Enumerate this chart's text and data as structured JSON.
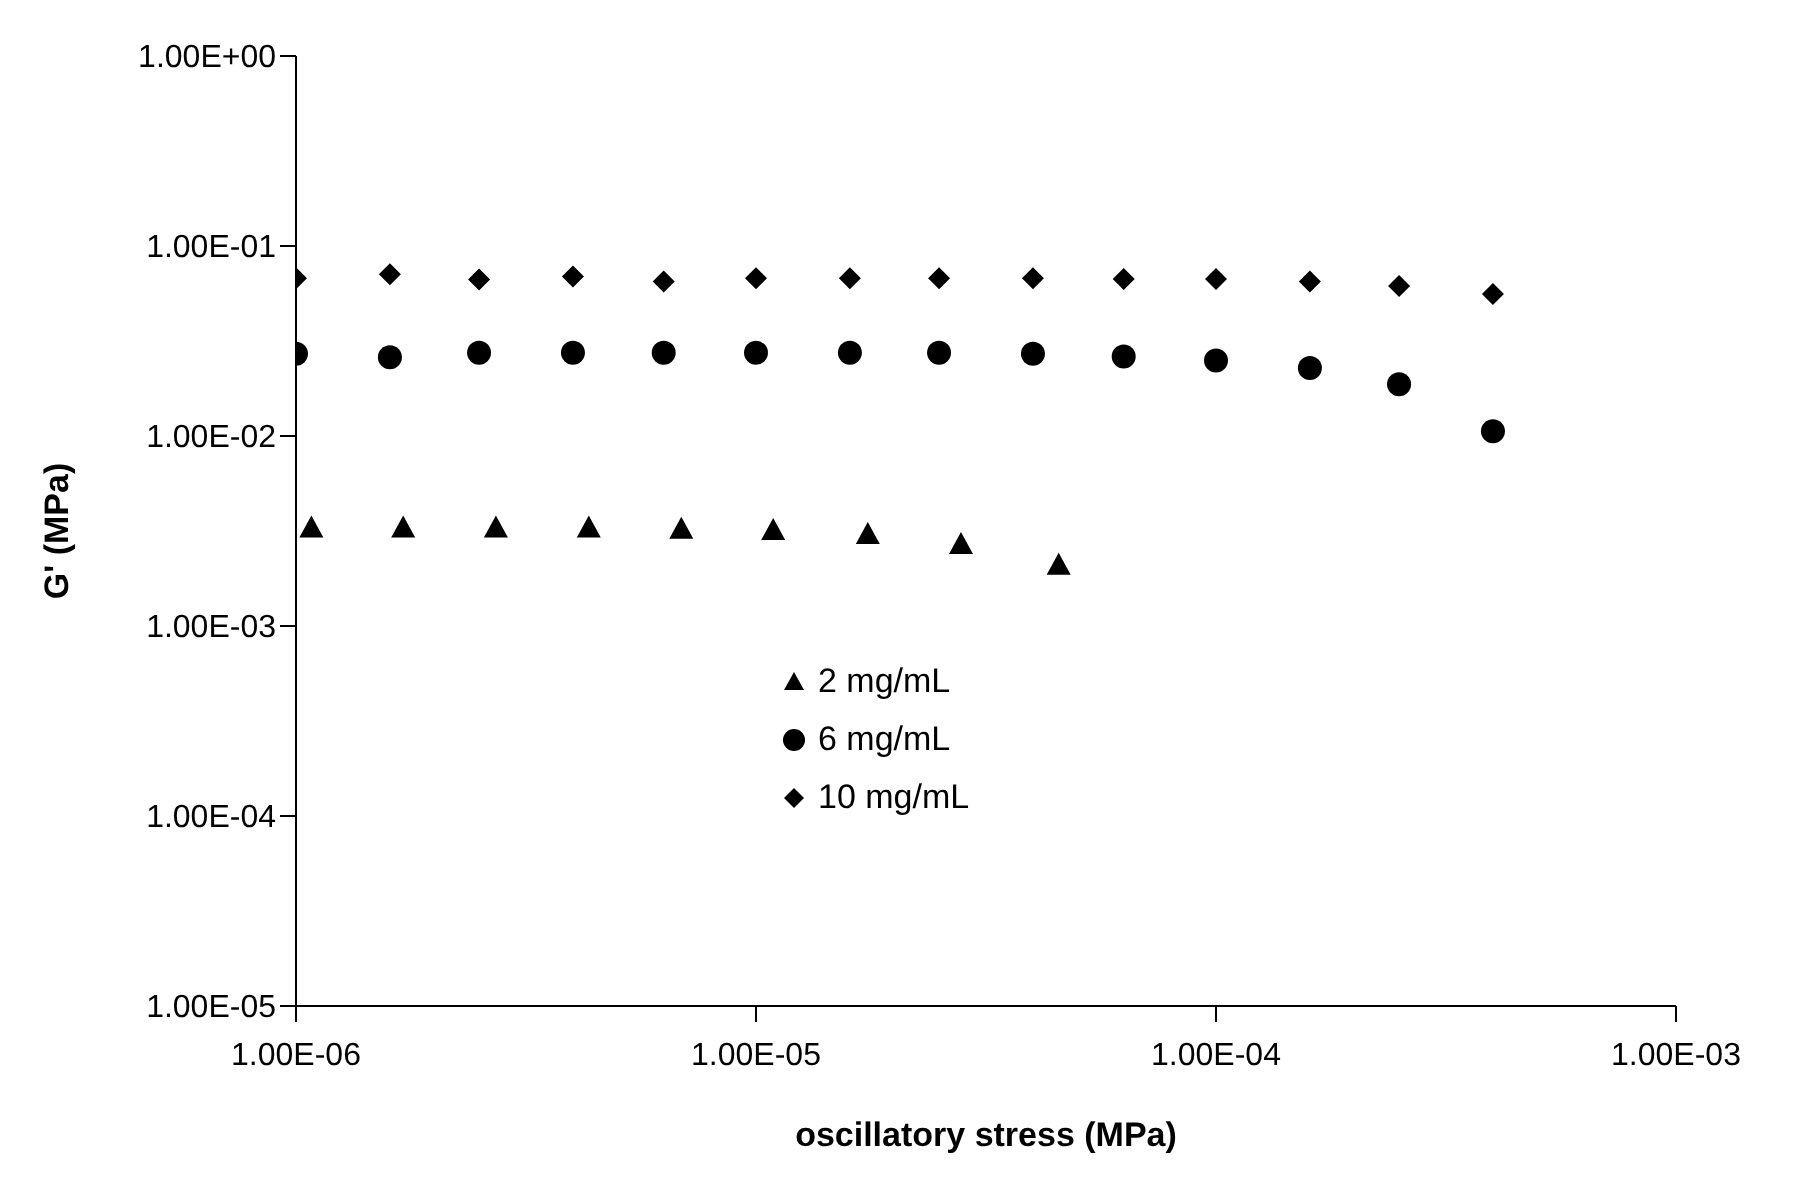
{
  "chart_data": {
    "type": "scatter",
    "xlabel": "oscillatory stress (MPa)",
    "ylabel": "G' (MPa)",
    "log": "xy",
    "legend": "center",
    "grid": false,
    "xlim": [
      1e-06,
      0.001
    ],
    "xticks": [
      {
        "value": 1e-06,
        "label": "1.00E-06"
      },
      {
        "value": 1e-05,
        "label": "1.00E-05"
      },
      {
        "value": 0.0001,
        "label": "1.00E-04"
      },
      {
        "value": 0.001,
        "label": "1.00E-03"
      }
    ],
    "ylim": [
      1e-05,
      1
    ],
    "yticks": [
      {
        "value": 1e-05,
        "label": "1.00E-05"
      },
      {
        "value": 0.0001,
        "label": "1.00E-04"
      },
      {
        "value": 0.001,
        "label": "1.00E-03"
      },
      {
        "value": 0.01,
        "label": "1.00E-02"
      },
      {
        "value": 0.1,
        "label": "1.00E-01"
      },
      {
        "value": 1,
        "label": "1.00E+00"
      }
    ],
    "series": [
      {
        "name": "2 mg/mL",
        "color": "#000000",
        "marker": "triangle",
        "x": [
          1.08e-06,
          1.71e-06,
          2.72e-06,
          4.33e-06,
          6.88e-06,
          1.09e-05,
          1.75e-05,
          2.79e-05,
          4.55e-05
        ],
        "values": [
          0.0033,
          0.0033,
          0.0033,
          0.0033,
          0.00325,
          0.0032,
          0.00305,
          0.0027,
          0.0021
        ]
      },
      {
        "name": "6 mg/mL",
        "color": "#000000",
        "marker": "circle",
        "x": [
          1e-06,
          1.6e-06,
          2.5e-06,
          4e-06,
          6.3e-06,
          1e-05,
          1.6e-05,
          2.5e-05,
          4e-05,
          6.3e-05,
          0.0001,
          0.00016,
          0.00025,
          0.0004
        ],
        "values": [
          0.0271,
          0.026,
          0.0274,
          0.0274,
          0.0274,
          0.0274,
          0.0274,
          0.0274,
          0.0271,
          0.0262,
          0.025,
          0.0228,
          0.0187,
          0.0106
        ]
      },
      {
        "name": "10 mg/mL",
        "color": "#000000",
        "marker": "diamond",
        "x": [
          1e-06,
          1.6e-06,
          2.5e-06,
          4e-06,
          6.3e-06,
          1e-05,
          1.6e-05,
          2.5e-05,
          4e-05,
          6.3e-05,
          0.0001,
          0.00016,
          0.00025,
          0.0004
        ],
        "values": [
          0.0676,
          0.071,
          0.0667,
          0.069,
          0.065,
          0.0676,
          0.0676,
          0.0676,
          0.0676,
          0.067,
          0.067,
          0.065,
          0.0615,
          0.0559
        ]
      }
    ]
  }
}
